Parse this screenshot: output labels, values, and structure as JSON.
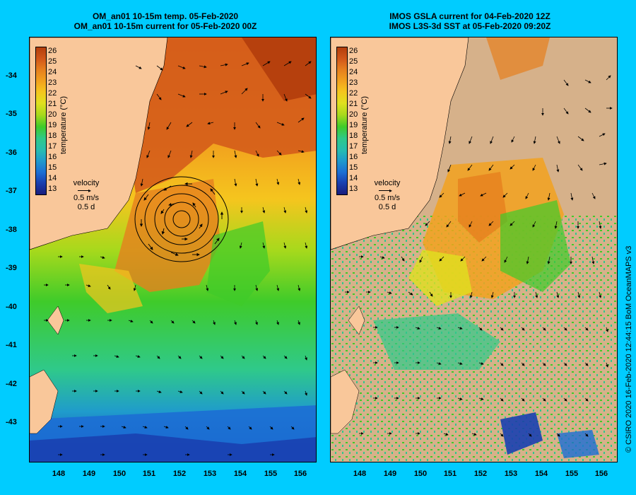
{
  "panels": [
    {
      "title_line1": "OM_an01 10-15m temp. 05-Feb-2020",
      "title_line2": "OM_an01 10-15m current for 05-Feb-2020 00Z"
    },
    {
      "title_line1": "IMOS GSLA current for 04-Feb-2020 12Z",
      "title_line2": "IMOS L3S-3d SST at 05-Feb-2020 09:20Z"
    }
  ],
  "colorbar": {
    "title": "temperature (°C)",
    "labels": [
      "26",
      "25",
      "24",
      "23",
      "22",
      "21",
      "20",
      "19",
      "18",
      "17",
      "16",
      "15",
      "14",
      "13"
    ],
    "colors": [
      "#b33d0c",
      "#d2581a",
      "#e67f1e",
      "#f2a21e",
      "#f5c51e",
      "#e0e01f",
      "#a7d91c",
      "#3fcb2a",
      "#2fc98a",
      "#27bcb0",
      "#1f9bcc",
      "#1c6ed4",
      "#1a40b0",
      "#1a1d7c"
    ]
  },
  "velocity_legend": {
    "label": "velocity",
    "speed": "0.5 m/s",
    "duration": "0.5 d"
  },
  "y_ticks": [
    "-34",
    "-35",
    "-36",
    "-37",
    "-38",
    "-39",
    "-40",
    "-41",
    "-42",
    "-43"
  ],
  "x_ticks": [
    "148",
    "149",
    "150",
    "151",
    "152",
    "153",
    "154",
    "155",
    "156"
  ],
  "credit": "© CSIRO 2020   16-Feb-2020 12:44:15 BoM OceanMAPS v3",
  "colors": {
    "background": "#00ccff",
    "land": "#f9c79a",
    "cloud_mask": "#d6b18a"
  }
}
